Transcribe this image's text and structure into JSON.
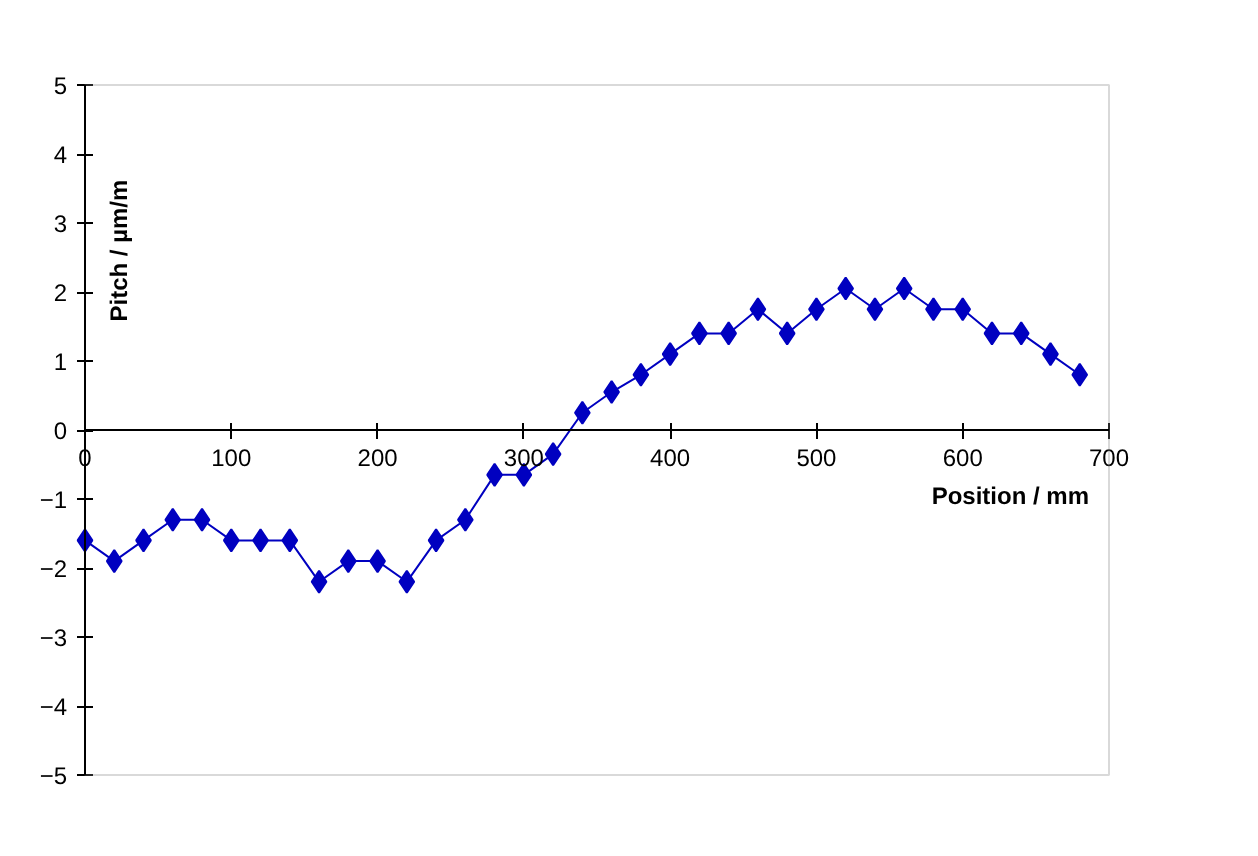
{
  "chart_data": {
    "type": "line",
    "xlabel": "Position / mm",
    "ylabel": "Pitch / µm/m",
    "x": [
      0,
      20,
      40,
      60,
      80,
      100,
      120,
      140,
      160,
      180,
      200,
      220,
      240,
      260,
      280,
      300,
      320,
      340,
      360,
      380,
      400,
      420,
      440,
      460,
      480,
      500,
      520,
      540,
      560,
      580,
      600,
      620,
      640,
      660,
      680
    ],
    "series": [
      {
        "color": "#0000c0",
        "values": [
          -1.6,
          -1.9,
          -1.6,
          -1.3,
          -1.3,
          -1.6,
          -1.6,
          -1.6,
          -2.2,
          -1.9,
          -1.9,
          -2.2,
          -1.6,
          -1.3,
          -0.65,
          -0.65,
          -0.35,
          0.25,
          0.55,
          0.8,
          1.1,
          1.4,
          1.4,
          1.75,
          1.4,
          1.75,
          2.05,
          1.75,
          2.05,
          1.75,
          1.75,
          1.4,
          1.4,
          1.1,
          0.8
        ]
      }
    ],
    "xlim": [
      0,
      700
    ],
    "xticks": [
      0,
      100,
      200,
      300,
      400,
      500,
      600,
      700
    ],
    "ylim": [
      -5,
      5
    ],
    "yticks": [
      -5,
      -4,
      -3,
      -2,
      -1,
      0,
      1,
      2,
      3,
      4,
      5
    ],
    "marker": "diamond",
    "grid": false
  }
}
